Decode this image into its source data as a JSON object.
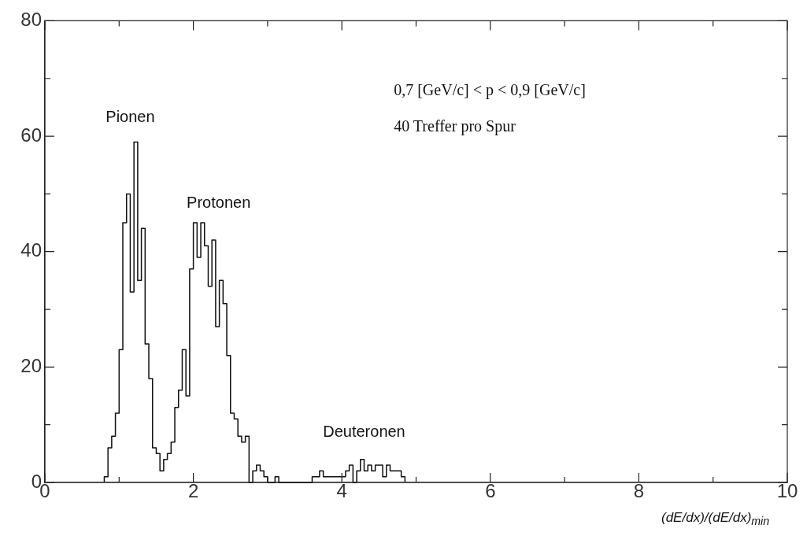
{
  "chart_data": {
    "type": "histogram",
    "bins": [
      0.8,
      0.85,
      0.9,
      0.95,
      1.0,
      1.05,
      1.1,
      1.15,
      1.2,
      1.25,
      1.3,
      1.35,
      1.4,
      1.45,
      1.5,
      1.55,
      1.6,
      1.65,
      1.7,
      1.75,
      1.8,
      1.85,
      1.9,
      1.95,
      2.0,
      2.05,
      2.1,
      2.15,
      2.2,
      2.25,
      2.3,
      2.35,
      2.4,
      2.45,
      2.5,
      2.55,
      2.6,
      2.65,
      2.7,
      2.75,
      2.8,
      2.85,
      2.9,
      2.95,
      3.0,
      3.05,
      3.1,
      3.15,
      3.2,
      3.25,
      3.3,
      3.35,
      3.4,
      3.45,
      3.5,
      3.55,
      3.6,
      3.65,
      3.7,
      3.75,
      3.8,
      3.85,
      3.9,
      3.95,
      4.0,
      4.05,
      4.1,
      4.15,
      4.2,
      4.25,
      4.3,
      4.35,
      4.4,
      4.45,
      4.5,
      4.55,
      4.6,
      4.65,
      4.7,
      4.75,
      4.8,
      4.85
    ],
    "values": [
      1,
      6,
      8,
      12,
      23,
      45,
      50,
      33,
      59,
      35,
      44,
      24,
      18,
      6,
      5,
      2,
      4,
      5,
      7,
      13,
      16,
      23,
      15,
      37,
      45,
      39,
      45,
      41,
      34,
      42,
      27,
      35,
      31,
      22,
      12,
      11,
      8,
      7,
      8,
      0,
      2,
      3,
      2,
      1,
      0,
      0,
      1,
      0,
      0,
      0,
      0,
      0,
      0,
      0,
      0,
      0,
      1,
      1,
      2,
      1,
      1,
      1,
      1,
      1,
      1,
      2,
      3,
      0,
      2,
      4,
      2,
      3,
      2,
      3,
      3,
      1,
      3,
      2,
      2,
      2,
      1
    ],
    "color": "#111111",
    "xlabel": "(dE/dx)/(dE/dx)$_{min}$",
    "xlim": [
      0,
      10
    ],
    "xticks": [
      0,
      {
        "value": 1,
        "label": null
      },
      2,
      {
        "value": 3,
        "label": null
      },
      4,
      {
        "value": 5,
        "label": null
      },
      6,
      {
        "value": 7,
        "label": null
      },
      8,
      {
        "value": 9,
        "label": null
      },
      10
    ],
    "ylim": [
      0,
      80
    ],
    "yticks": [
      0,
      {
        "value": 10,
        "label": null
      },
      20,
      {
        "value": 30,
        "label": null
      },
      40,
      {
        "value": 50,
        "label": null
      },
      60,
      {
        "value": 70,
        "label": null
      },
      80
    ],
    "annotations": [
      "Pionen",
      "Protonen",
      "Deuteronen",
      "0,7 [GeV/c] < p < 0,9 [GeV/c]",
      "40 Treffer pro Spur"
    ]
  }
}
